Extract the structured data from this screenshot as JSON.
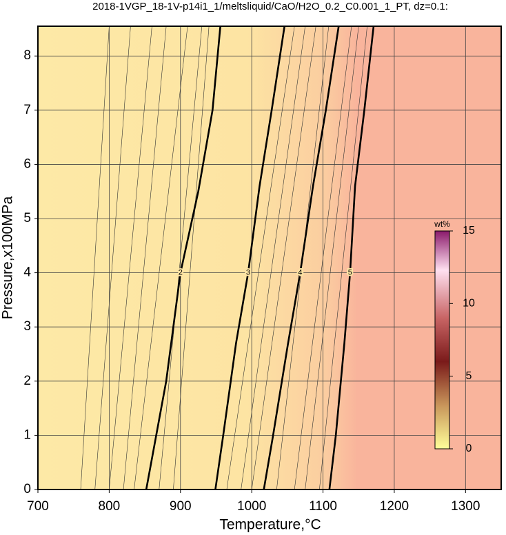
{
  "chart_data": {
    "type": "contour",
    "title": "2018-1VGP_18-1V-p14i1_1/meltsliquid/CaO/H2O_0.2_C0.001_1_PT, dz=0.1:",
    "xlabel": "Temperature,°C",
    "ylabel": "Pressure,x100MPa",
    "xlim": [
      700,
      1350
    ],
    "ylim": [
      0,
      8.55
    ],
    "xticks": [
      700,
      800,
      900,
      1000,
      1100,
      1200,
      1300
    ],
    "yticks": [
      0,
      1,
      2,
      3,
      4,
      5,
      6,
      7,
      8
    ],
    "grid": true,
    "contours": [
      {
        "level": 2,
        "x": [
          852,
          866,
          880,
          900,
          925,
          945,
          956
        ],
        "y": [
          0,
          1,
          2,
          4,
          5.5,
          7,
          8.55
        ]
      },
      {
        "level": 3,
        "x": [
          949,
          960,
          978,
          995,
          1011,
          1028,
          1046
        ],
        "y": [
          0,
          1,
          2.7,
          4,
          5.6,
          7,
          8.55
        ]
      },
      {
        "level": 4,
        "x": [
          1017,
          1030,
          1051,
          1068,
          1086,
          1104,
          1122
        ],
        "y": [
          0,
          1,
          2.7,
          4,
          5.6,
          7,
          8.55
        ]
      },
      {
        "level": 5,
        "x": [
          1109,
          1118,
          1130,
          1138,
          1145,
          1158,
          1171
        ],
        "y": [
          0,
          1,
          2.7,
          4,
          5.6,
          7,
          8.55
        ]
      }
    ],
    "thin_contours": [
      {
        "x": [
          760,
          800
        ],
        "y": [
          0,
          8.55
        ]
      },
      {
        "x": [
          780,
          830
        ],
        "y": [
          0,
          8.55
        ]
      },
      {
        "x": [
          800,
          860
        ],
        "y": [
          0,
          8.55
        ]
      },
      {
        "x": [
          820,
          880
        ],
        "y": [
          0,
          8.55
        ]
      },
      {
        "x": [
          835,
          910
        ],
        "y": [
          0,
          8.55
        ]
      },
      {
        "x": [
          870,
          930
        ],
        "y": [
          0,
          8.55
        ]
      },
      {
        "x": [
          890,
          940
        ],
        "y": [
          0,
          8.55
        ]
      },
      {
        "x": [
          965,
          1060
        ],
        "y": [
          0,
          8.55
        ]
      },
      {
        "x": [
          985,
          1075
        ],
        "y": [
          0,
          8.55
        ]
      },
      {
        "x": [
          1000,
          1090
        ],
        "y": [
          0,
          8.55
        ]
      },
      {
        "x": [
          1035,
          1108
        ],
        "y": [
          0,
          8.55
        ]
      },
      {
        "x": [
          1060,
          1140
        ],
        "y": [
          0,
          8.55
        ]
      },
      {
        "x": [
          1075,
          1150
        ],
        "y": [
          0,
          8.55
        ]
      },
      {
        "x": [
          1095,
          1162
        ],
        "y": [
          0,
          8.55
        ]
      }
    ],
    "colorbar": {
      "label": "wt%",
      "lim": [
        0,
        15
      ],
      "ticks": [
        0,
        5,
        10,
        15
      ]
    }
  }
}
